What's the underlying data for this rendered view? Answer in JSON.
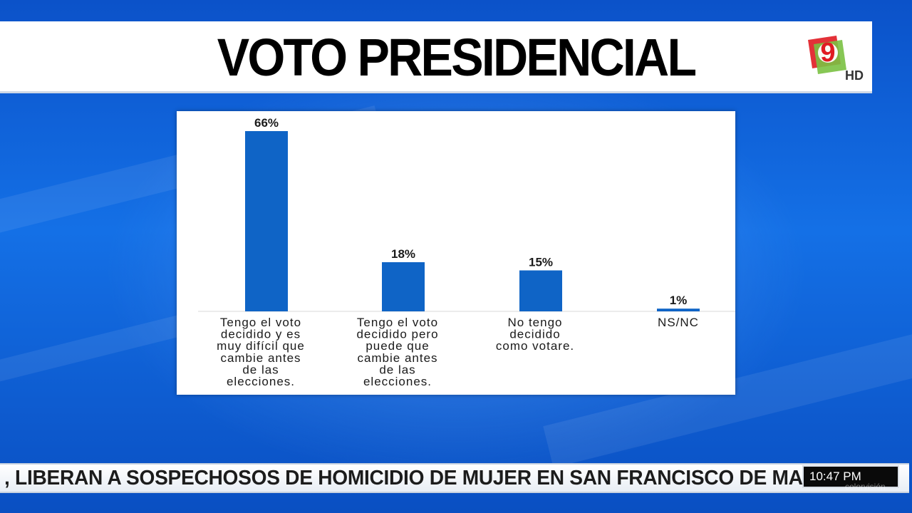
{
  "header": {
    "title": "VOTO PRESIDENCIAL"
  },
  "logo": {
    "badge": "HD"
  },
  "chart_data": {
    "type": "bar",
    "categories": [
      [
        "Tengo el voto",
        "decidido y es",
        "muy difícil que",
        "cambie antes",
        "de las",
        "elecciones."
      ],
      [
        "Tengo el voto",
        "decidido pero",
        "puede que",
        "cambie antes",
        "de las",
        "elecciones."
      ],
      [
        "No tengo",
        "decidido",
        "como votare."
      ],
      [
        "NS/NC"
      ]
    ],
    "values": [
      66,
      18,
      15,
      1
    ],
    "data_labels": [
      "66%",
      "18%",
      "15%",
      "1%"
    ],
    "title": "",
    "xlabel": "",
    "ylabel": "",
    "ylim": [
      0,
      66
    ],
    "grid": false,
    "bar_color": "#0f64c6"
  },
  "ticker": {
    "headline": ", LIBERAN A SOSPECHOSOS DE HOMICIDIO DE MUJER EN SAN FRANCISCO DE MACORÍS",
    "time": "10:47 PM"
  },
  "colors": {
    "background": "#1268e0",
    "panel": "#ffffff",
    "accent_red": "#e01b22",
    "accent_green": "#7ac142"
  }
}
